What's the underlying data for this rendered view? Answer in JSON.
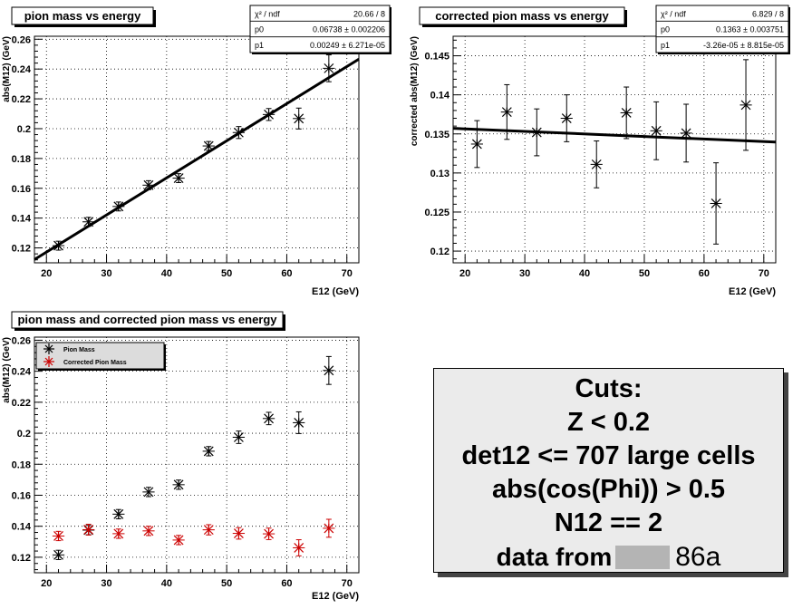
{
  "chart_data": [
    {
      "type": "scatter",
      "title": "pion mass vs energy",
      "xlabel": "E12 (GeV)",
      "ylabel": "abs(M12) (GeV)",
      "xlim": [
        18,
        72
      ],
      "ylim": [
        0.11,
        0.262
      ],
      "xticks": [
        20,
        30,
        40,
        50,
        60,
        70
      ],
      "yticks": [
        0.12,
        0.14,
        0.16,
        0.18,
        0.2,
        0.22,
        0.24,
        0.26
      ],
      "grid": true,
      "stats": [
        {
          "label": "χ² / ndf",
          "value": "20.66 / 8"
        },
        {
          "label": "p0",
          "value": "0.06738 ± 0.002206"
        },
        {
          "label": "p1",
          "value": "0.00249 ± 6.271e-05"
        }
      ],
      "fit": {
        "p0": 0.06738,
        "p1": 0.00249
      },
      "series": [
        {
          "color": "#000000",
          "x": [
            22,
            27,
            32,
            37,
            42,
            47,
            52,
            57,
            62,
            67
          ],
          "y": [
            0.1215,
            0.1375,
            0.1478,
            0.1621,
            0.1668,
            0.1884,
            0.1974,
            0.2095,
            0.2068,
            0.2405
          ],
          "yerr": [
            0.003,
            0.003,
            0.003,
            0.003,
            0.003,
            0.003,
            0.004,
            0.004,
            0.007,
            0.009
          ],
          "xerr": [
            1,
            1,
            1,
            1,
            1,
            1,
            1,
            1,
            1,
            1
          ]
        }
      ]
    },
    {
      "type": "scatter",
      "title": "corrected pion mass vs energy",
      "xlabel": "E12 (GeV)",
      "ylabel": "corrected abs(M12) (GeV)",
      "xlim": [
        18,
        72
      ],
      "ylim": [
        0.1185,
        0.1475
      ],
      "xticks": [
        20,
        30,
        40,
        50,
        60,
        70
      ],
      "yticks": [
        0.12,
        0.125,
        0.13,
        0.135,
        0.14,
        0.145
      ],
      "grid": true,
      "stats": [
        {
          "label": "χ² / ndf",
          "value": "6.829 / 8"
        },
        {
          "label": "p0",
          "value": "0.1363 ± 0.003751"
        },
        {
          "label": "p1",
          "value": "-3.26e-05 ± 8.815e-05"
        }
      ],
      "fit": {
        "p0": 0.1363,
        "p1": -3.26e-05
      },
      "series": [
        {
          "color": "#000000",
          "x": [
            22,
            27,
            32,
            37,
            42,
            47,
            52,
            57,
            62,
            67
          ],
          "y": [
            0.1337,
            0.1378,
            0.1352,
            0.137,
            0.1311,
            0.1377,
            0.1354,
            0.1351,
            0.1261,
            0.1387
          ],
          "yerr": [
            0.003,
            0.0035,
            0.003,
            0.003,
            0.003,
            0.0033,
            0.0037,
            0.0037,
            0.0052,
            0.0058
          ],
          "xerr": [
            1,
            1,
            1,
            1,
            1,
            1,
            1,
            1,
            1,
            1
          ]
        }
      ]
    },
    {
      "type": "scatter",
      "title": "pion mass and corrected pion mass vs energy",
      "xlabel": "E12 (GeV)",
      "ylabel": "abs(M12) (GeV)",
      "xlim": [
        18,
        72
      ],
      "ylim": [
        0.11,
        0.262
      ],
      "xticks": [
        20,
        30,
        40,
        50,
        60,
        70
      ],
      "yticks": [
        0.12,
        0.14,
        0.16,
        0.18,
        0.2,
        0.22,
        0.24,
        0.26
      ],
      "grid": true,
      "legend": "top-left",
      "series": [
        {
          "name": "Pion Mass",
          "color": "#000000",
          "x": [
            22,
            27,
            32,
            37,
            42,
            47,
            52,
            57,
            62,
            67
          ],
          "y": [
            0.1215,
            0.1375,
            0.1478,
            0.1621,
            0.1668,
            0.1884,
            0.1974,
            0.2095,
            0.2068,
            0.2405
          ],
          "yerr": [
            0.003,
            0.003,
            0.003,
            0.003,
            0.003,
            0.003,
            0.004,
            0.004,
            0.007,
            0.009
          ],
          "xerr": [
            1,
            1,
            1,
            1,
            1,
            1,
            1,
            1,
            1,
            1
          ]
        },
        {
          "name": "Corrected Pion Mass",
          "color": "#cc0000",
          "x": [
            22,
            27,
            32,
            37,
            42,
            47,
            52,
            57,
            62,
            67
          ],
          "y": [
            0.1337,
            0.1378,
            0.1352,
            0.137,
            0.1311,
            0.1377,
            0.1354,
            0.1351,
            0.1261,
            0.1387
          ],
          "yerr": [
            0.003,
            0.0035,
            0.003,
            0.003,
            0.003,
            0.0033,
            0.0037,
            0.0037,
            0.0052,
            0.0058
          ],
          "xerr": [
            1,
            1,
            1,
            1,
            1,
            1,
            1,
            1,
            1,
            1
          ]
        }
      ]
    }
  ],
  "cuts": {
    "lines": [
      "Cuts:",
      "Z < 0.2",
      "det12 <= 707 large cells",
      "abs(cos(Phi)) > 0.5",
      "N12 == 2"
    ],
    "source_prefix": "data from",
    "source_suffix": "86a"
  }
}
